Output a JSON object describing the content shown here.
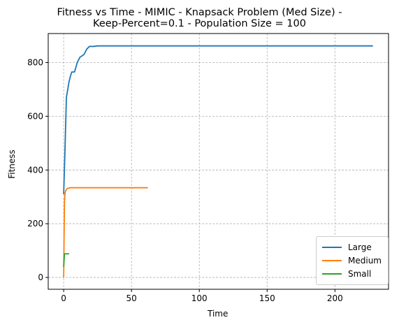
{
  "chart_data": {
    "type": "line",
    "title": "Fitness vs Time - MIMIC - Knapsack Problem (Med Size) -",
    "subtitle": "Keep-Percent=0.1 - Population Size = 100",
    "xlabel": "Time",
    "ylabel": "Fitness",
    "xlim": [
      -11.4,
      239.5
    ],
    "ylim": [
      -44,
      908
    ],
    "xticks": [
      0,
      50,
      100,
      150,
      200
    ],
    "yticks": [
      0,
      200,
      400,
      600,
      800
    ],
    "grid": true,
    "legend_position": "lower-right",
    "series": [
      {
        "name": "Large",
        "color": "#1f77b4",
        "points": [
          [
            0,
            310
          ],
          [
            1,
            480
          ],
          [
            2,
            670
          ],
          [
            3,
            700
          ],
          [
            4,
            730
          ],
          [
            5,
            750
          ],
          [
            6,
            765
          ],
          [
            8,
            765
          ],
          [
            10,
            800
          ],
          [
            12,
            820
          ],
          [
            15,
            830
          ],
          [
            17,
            850
          ],
          [
            19,
            860
          ],
          [
            22,
            860
          ],
          [
            25,
            862
          ],
          [
            50,
            862
          ],
          [
            100,
            862
          ],
          [
            150,
            862
          ],
          [
            200,
            862
          ],
          [
            228,
            862
          ]
        ]
      },
      {
        "name": "Medium",
        "color": "#ff7f0e",
        "points": [
          [
            0,
            0
          ],
          [
            0.3,
            150
          ],
          [
            0.6,
            280
          ],
          [
            1,
            315
          ],
          [
            2,
            328
          ],
          [
            3,
            332
          ],
          [
            5,
            334
          ],
          [
            10,
            334
          ],
          [
            30,
            334
          ],
          [
            62,
            334
          ]
        ]
      },
      {
        "name": "Small",
        "color": "#2ca02c",
        "points": [
          [
            0,
            40
          ],
          [
            0.3,
            65
          ],
          [
            0.6,
            88
          ],
          [
            2,
            88
          ],
          [
            4,
            88
          ]
        ]
      }
    ]
  }
}
